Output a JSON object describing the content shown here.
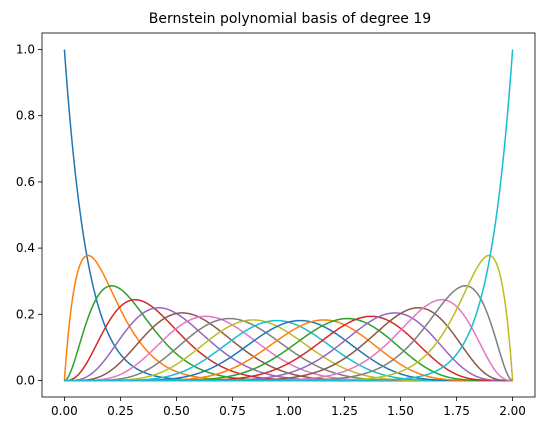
{
  "chart_data": {
    "type": "line",
    "title": "Bernstein polynomial basis of degree 19",
    "xlabel": "",
    "ylabel": "",
    "degree": 19,
    "domain": [
      0.0,
      2.0
    ],
    "xlim": [
      -0.1,
      2.1
    ],
    "ylim": [
      -0.05,
      1.05
    ],
    "x_ticks": [
      0.0,
      0.25,
      0.5,
      0.75,
      1.0,
      1.25,
      1.5,
      1.75,
      2.0
    ],
    "x_tick_labels": [
      "0.00",
      "0.25",
      "0.50",
      "0.75",
      "1.00",
      "1.25",
      "1.50",
      "1.75",
      "2.00"
    ],
    "y_ticks": [
      0.0,
      0.2,
      0.4,
      0.6,
      0.8,
      1.0
    ],
    "y_tick_labels": [
      "0.0",
      "0.2",
      "0.4",
      "0.6",
      "0.8",
      "1.0"
    ],
    "grid": false,
    "legend": "none",
    "series_count": 20,
    "colors": [
      "#1f77b4",
      "#ff7f0e",
      "#2ca02c",
      "#d62728",
      "#9467bd",
      "#8c564b",
      "#e377c2",
      "#7f7f7f",
      "#bcbd22",
      "#17becf"
    ]
  }
}
